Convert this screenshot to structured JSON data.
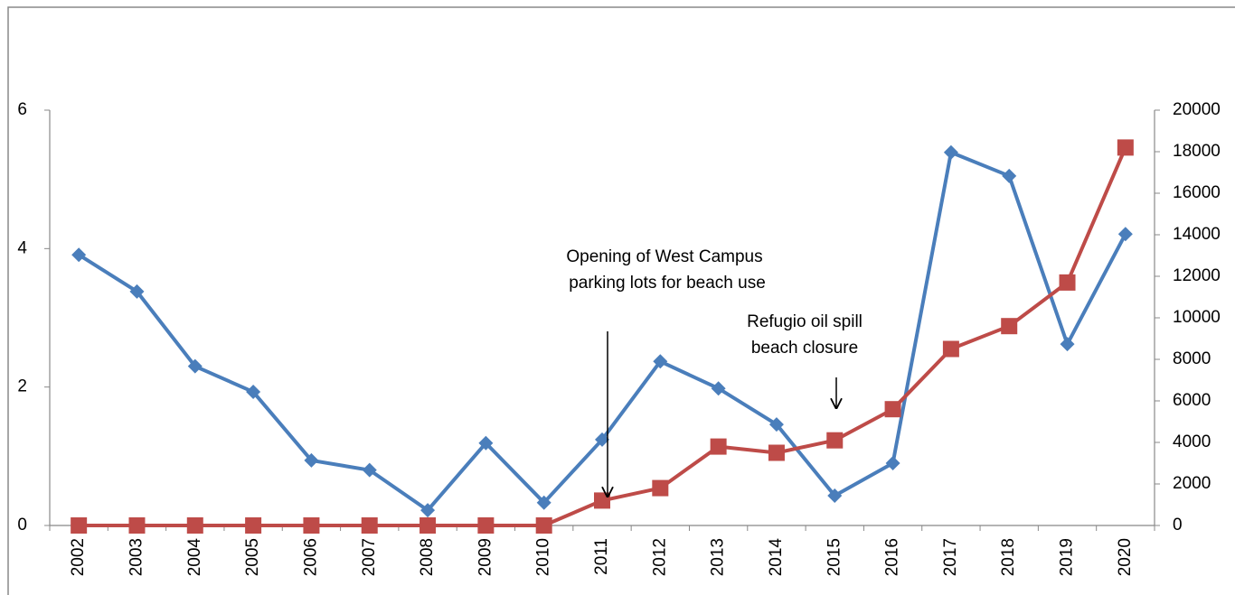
{
  "chart_data": {
    "type": "line",
    "categories": [
      "2002",
      "2003",
      "2004",
      "2005",
      "2006",
      "2007",
      "2008",
      "2009",
      "2010",
      "2011",
      "2012",
      "2013",
      "2014",
      "2015",
      "2016",
      "2017",
      "2018",
      "2019",
      "2020"
    ],
    "series": [
      {
        "color": "#4a7ebb",
        "marker": "diamond",
        "axis": "y",
        "values": [
          3.91,
          3.38,
          2.3,
          1.93,
          0.94,
          0.8,
          0.22,
          1.19,
          0.33,
          1.24,
          2.37,
          1.98,
          1.46,
          0.43,
          0.9,
          5.39,
          5.05,
          2.62,
          4.21
        ]
      },
      {
        "color": "#be4b48",
        "marker": "square",
        "axis": "y2",
        "values": [
          0,
          0,
          0,
          0,
          0,
          0,
          0,
          0,
          0,
          1200,
          1800,
          3800,
          3500,
          4100,
          5600,
          8500,
          9600,
          11700,
          18200
        ]
      }
    ],
    "ylim": [
      0,
      6
    ],
    "yticks": [
      0,
      2,
      4,
      6
    ],
    "y2lim": [
      0,
      20000
    ],
    "y2ticks": [
      0,
      2000,
      4000,
      6000,
      8000,
      10000,
      12000,
      14000,
      16000,
      18000,
      20000
    ],
    "annotations": [
      {
        "lines": [
          "Opening of West Campus",
          "parking lots for beach use"
        ]
      },
      {
        "lines": [
          "Refugio oil spill",
          "beach closure"
        ]
      }
    ]
  }
}
